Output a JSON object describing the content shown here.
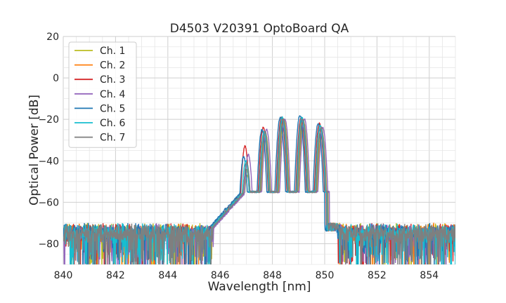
{
  "chart_data": {
    "type": "line",
    "title": "D4503 V20391 OptoBoard QA",
    "xlabel": "Wavelength [nm]",
    "ylabel": "Optical Power [dB]",
    "xlim": [
      840,
      855
    ],
    "ylim": [
      -90,
      20
    ],
    "grid": true,
    "x_ticks": [
      840,
      842,
      844,
      846,
      848,
      850,
      852,
      854
    ],
    "x_tick_labels": [
      "840",
      "842",
      "844",
      "846",
      "848",
      "850",
      "852",
      "854"
    ],
    "y_ticks": [
      -80,
      -60,
      -40,
      -20,
      0,
      20
    ],
    "y_tick_labels": [
      "−80",
      "−60",
      "−40",
      "−20",
      "0",
      "20"
    ],
    "legend_position": "top-left",
    "series": [
      {
        "name": "Ch. 1",
        "color": "#bcbd22",
        "shift": 0.14,
        "noise_seed": 11,
        "values": [
          [
            840,
            -80
          ],
          [
            845.9,
            -68
          ],
          [
            846.9,
            -47
          ],
          [
            847.6,
            -27
          ],
          [
            848.3,
            -20
          ],
          [
            849.05,
            -21
          ],
          [
            849.75,
            -26
          ],
          [
            850.0,
            -72
          ],
          [
            855,
            -80
          ]
        ]
      },
      {
        "name": "Ch. 2",
        "color": "#ff7f0e",
        "shift": 0.1,
        "noise_seed": 23,
        "values": [
          [
            840,
            -80
          ],
          [
            845.9,
            -68
          ],
          [
            846.9,
            -44
          ],
          [
            847.6,
            -26
          ],
          [
            848.3,
            -20
          ],
          [
            849.05,
            -20
          ],
          [
            849.75,
            -25
          ],
          [
            850.0,
            -72
          ],
          [
            855,
            -80
          ]
        ]
      },
      {
        "name": "Ch. 3",
        "color": "#d62728",
        "shift": 0.05,
        "noise_seed": 37,
        "values": [
          [
            840,
            -80
          ],
          [
            845.9,
            -68
          ],
          [
            846.9,
            -33
          ],
          [
            847.6,
            -24
          ],
          [
            848.3,
            -19
          ],
          [
            849.05,
            -19
          ],
          [
            849.75,
            -22
          ],
          [
            850.0,
            -72
          ],
          [
            855,
            -80
          ]
        ]
      },
      {
        "name": "Ch. 4",
        "color": "#9467bd",
        "shift": 0.18,
        "noise_seed": 41,
        "values": [
          [
            840,
            -80
          ],
          [
            845.9,
            -68
          ],
          [
            846.9,
            -37
          ],
          [
            847.6,
            -25
          ],
          [
            848.3,
            -20
          ],
          [
            849.05,
            -20
          ],
          [
            849.75,
            -24
          ],
          [
            850.0,
            -72
          ],
          [
            855,
            -80
          ]
        ]
      },
      {
        "name": "Ch. 5",
        "color": "#1f77b4",
        "shift": 0.0,
        "noise_seed": 53,
        "values": [
          [
            840,
            -80
          ],
          [
            845.9,
            -68
          ],
          [
            846.9,
            -38
          ],
          [
            847.6,
            -25
          ],
          [
            848.3,
            -19
          ],
          [
            849.05,
            -18
          ],
          [
            849.75,
            -22
          ],
          [
            850.0,
            -72
          ],
          [
            855,
            -80
          ]
        ]
      },
      {
        "name": "Ch. 6",
        "color": "#17becf",
        "shift": 0.08,
        "noise_seed": 67,
        "values": [
          [
            840,
            -80
          ],
          [
            845.9,
            -68
          ],
          [
            846.9,
            -40
          ],
          [
            847.6,
            -26
          ],
          [
            848.3,
            -19
          ],
          [
            849.05,
            -19
          ],
          [
            849.75,
            -23
          ],
          [
            850.0,
            -72
          ],
          [
            855,
            -80
          ]
        ]
      },
      {
        "name": "Ch. 7",
        "color": "#7f7f7f",
        "shift": 0.12,
        "noise_seed": 79,
        "values": [
          [
            840,
            -80
          ],
          [
            845.9,
            -68
          ],
          [
            846.9,
            -41
          ],
          [
            847.6,
            -26
          ],
          [
            848.3,
            -20
          ],
          [
            849.05,
            -20
          ],
          [
            849.75,
            -24
          ],
          [
            850.0,
            -72
          ],
          [
            855,
            -80
          ]
        ]
      }
    ]
  }
}
